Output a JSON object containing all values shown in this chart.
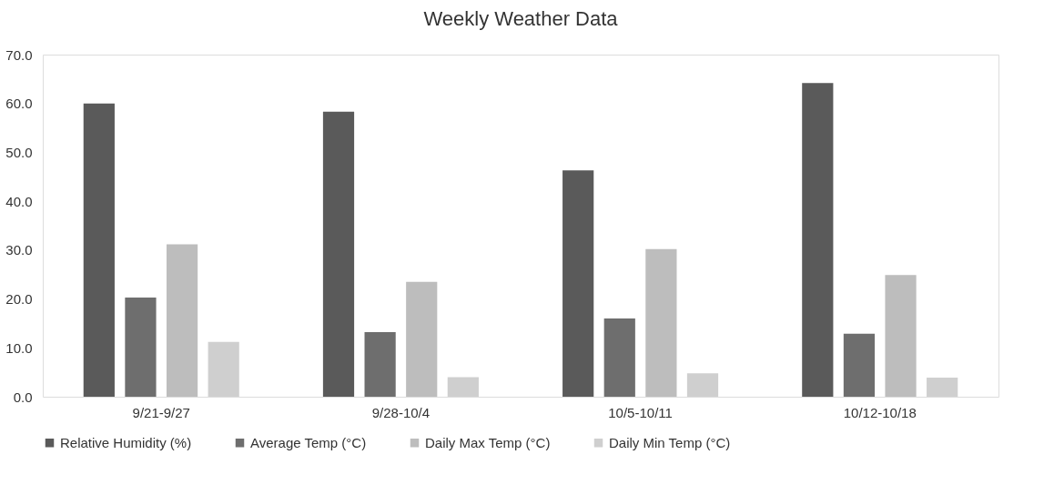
{
  "chart_data": {
    "type": "bar",
    "title": "Weekly Weather Data",
    "categories": [
      "9/21-9/27",
      "9/28-10/4",
      "10/5-10/11",
      "10/12-10/18"
    ],
    "series": [
      {
        "name": "Relative Humidity (%)",
        "color": "#5a5a5a",
        "values": [
          60.0,
          58.3,
          46.3,
          64.2
        ]
      },
      {
        "name": "Average Temp (°C)",
        "color": "#6e6e6e",
        "values": [
          20.3,
          13.2,
          16.0,
          12.9
        ]
      },
      {
        "name": "Daily Max Temp (°C)",
        "color": "#bdbdbd",
        "values": [
          31.2,
          23.5,
          30.2,
          24.9
        ]
      },
      {
        "name": "Daily Min Temp (°C)",
        "color": "#cfcfcf",
        "values": [
          11.2,
          4.0,
          4.8,
          3.9
        ]
      }
    ],
    "ylim": [
      0,
      70
    ],
    "yticks": [
      {
        "value": 0,
        "label": "0.0"
      },
      {
        "value": 10,
        "label": "10.0"
      },
      {
        "value": 20,
        "label": "20.0"
      },
      {
        "value": 30,
        "label": "30.0"
      },
      {
        "value": 40,
        "label": "40.0"
      },
      {
        "value": 50,
        "label": "50.0"
      },
      {
        "value": 60,
        "label": "60.0"
      },
      {
        "value": 70,
        "label": "70.0"
      }
    ],
    "grid": false,
    "legend": "bottom"
  }
}
